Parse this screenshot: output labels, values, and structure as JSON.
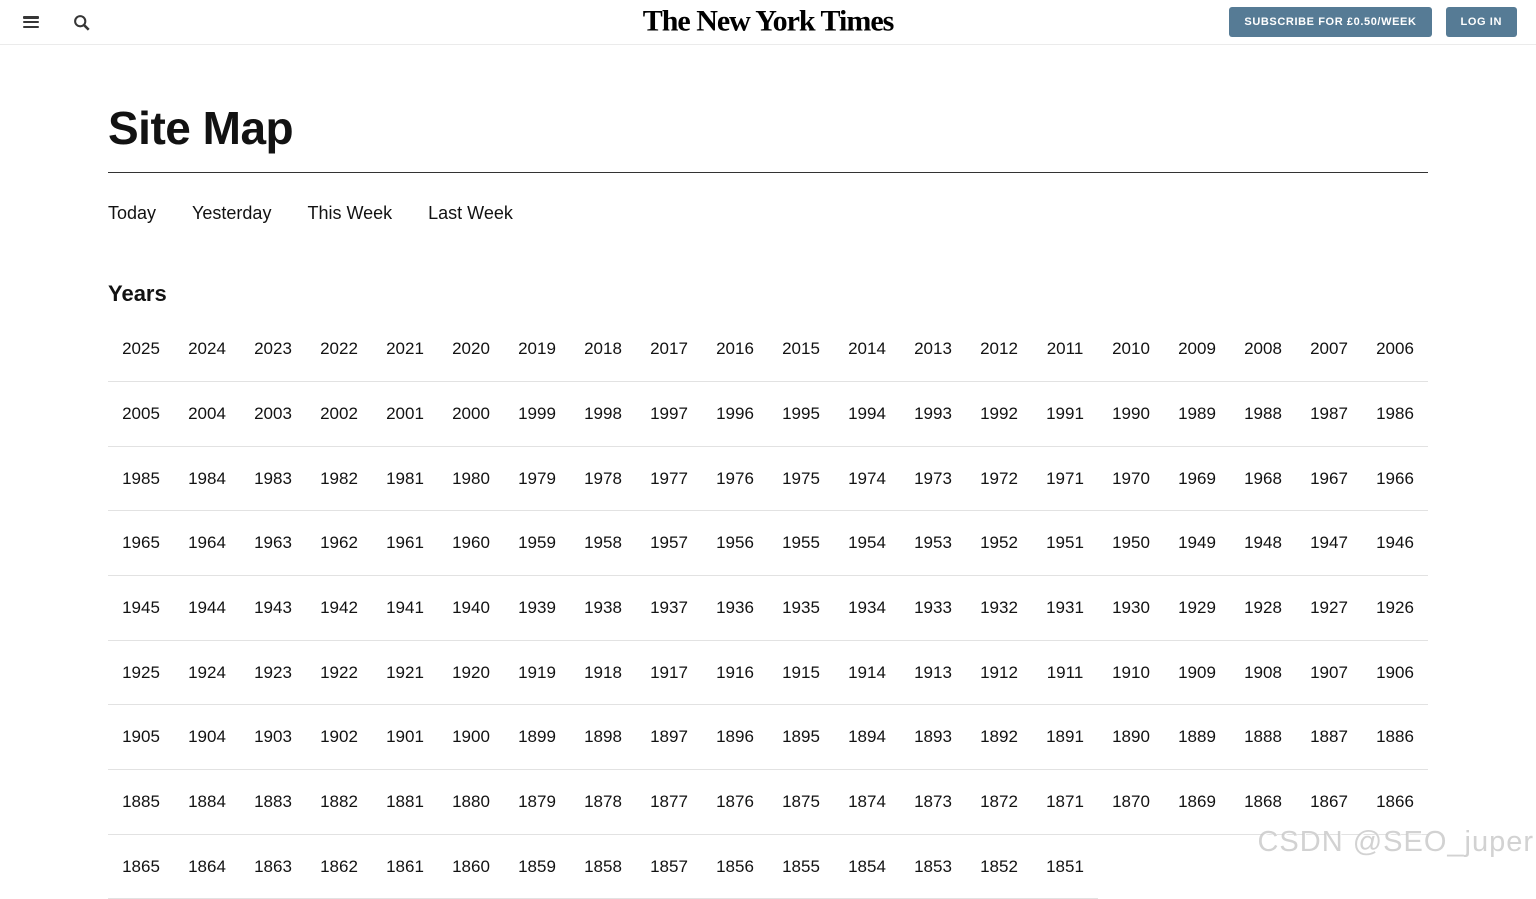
{
  "header": {
    "logo": "The New York Times",
    "subscribe_label": "SUBSCRIBE FOR £0.50/WEEK",
    "login_label": "LOG IN",
    "accent_color": "#567b95",
    "icons": [
      "hamburger-menu-icon",
      "search-icon"
    ]
  },
  "page": {
    "title": "Site Map"
  },
  "nav": {
    "items": [
      {
        "label": "Today"
      },
      {
        "label": "Yesterday"
      },
      {
        "label": "This Week"
      },
      {
        "label": "Last Week"
      }
    ]
  },
  "years": {
    "heading": "Years",
    "items": [
      2025,
      2024,
      2023,
      2022,
      2021,
      2020,
      2019,
      2018,
      2017,
      2016,
      2015,
      2014,
      2013,
      2012,
      2011,
      2010,
      2009,
      2008,
      2007,
      2006,
      2005,
      2004,
      2003,
      2002,
      2001,
      2000,
      1999,
      1998,
      1997,
      1996,
      1995,
      1994,
      1993,
      1992,
      1991,
      1990,
      1989,
      1988,
      1987,
      1986,
      1985,
      1984,
      1983,
      1982,
      1981,
      1980,
      1979,
      1978,
      1977,
      1976,
      1975,
      1974,
      1973,
      1972,
      1971,
      1970,
      1969,
      1968,
      1967,
      1966,
      1965,
      1964,
      1963,
      1962,
      1961,
      1960,
      1959,
      1958,
      1957,
      1956,
      1955,
      1954,
      1953,
      1952,
      1951,
      1950,
      1949,
      1948,
      1947,
      1946,
      1945,
      1944,
      1943,
      1942,
      1941,
      1940,
      1939,
      1938,
      1937,
      1936,
      1935,
      1934,
      1933,
      1932,
      1931,
      1930,
      1929,
      1928,
      1927,
      1926,
      1925,
      1924,
      1923,
      1922,
      1921,
      1920,
      1919,
      1918,
      1917,
      1916,
      1915,
      1914,
      1913,
      1912,
      1911,
      1910,
      1909,
      1908,
      1907,
      1906,
      1905,
      1904,
      1903,
      1902,
      1901,
      1900,
      1899,
      1898,
      1897,
      1896,
      1895,
      1894,
      1893,
      1892,
      1891,
      1890,
      1889,
      1888,
      1887,
      1886,
      1885,
      1884,
      1883,
      1882,
      1881,
      1880,
      1879,
      1878,
      1877,
      1876,
      1875,
      1874,
      1873,
      1872,
      1871,
      1870,
      1869,
      1868,
      1867,
      1866,
      1865,
      1864,
      1863,
      1862,
      1861,
      1860,
      1859,
      1858,
      1857,
      1856,
      1855,
      1854,
      1853,
      1852,
      1851
    ]
  },
  "watermark": {
    "text": "CSDN @SEO_juper"
  }
}
